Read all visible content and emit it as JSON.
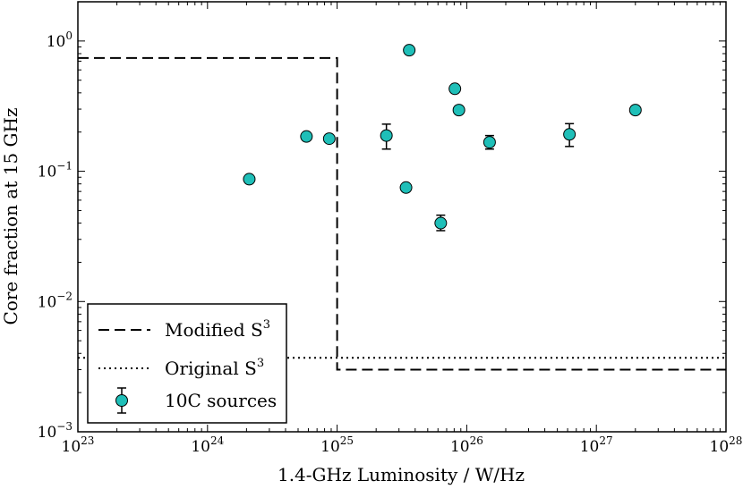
{
  "chart_data": {
    "type": "scatter",
    "title": "",
    "xlabel": "1.4-GHz Luminosity / W/Hz",
    "ylabel": "Core fraction at 15 GHz",
    "xscale": "log",
    "yscale": "log",
    "xlim": [
      1e+23,
      1e+28
    ],
    "ylim": [
      0.001,
      2
    ],
    "x_ticks": [
      {
        "value": 1e+23,
        "base": "10",
        "exp": "23"
      },
      {
        "value": 1e+24,
        "base": "10",
        "exp": "24"
      },
      {
        "value": 1e+25,
        "base": "10",
        "exp": "25"
      },
      {
        "value": 1e+26,
        "base": "10",
        "exp": "26"
      },
      {
        "value": 1e+27,
        "base": "10",
        "exp": "27"
      },
      {
        "value": 1e+28,
        "base": "10",
        "exp": "28"
      }
    ],
    "y_ticks": [
      {
        "value": 0.001,
        "base": "10",
        "exp": "−3"
      },
      {
        "value": 0.01,
        "base": "10",
        "exp": "−2"
      },
      {
        "value": 0.1,
        "base": "10",
        "exp": "−1"
      },
      {
        "value": 1,
        "base": "10",
        "exp": "0"
      }
    ],
    "legend_position": "lower-left",
    "series": [
      {
        "name": "Modified S3",
        "label_text": "Modified S",
        "label_sup": "3",
        "style": "dashed",
        "color": "#000000",
        "points": [
          [
            1e+23,
            0.74
          ],
          [
            1e+25,
            0.74
          ],
          [
            1e+25,
            0.003
          ],
          [
            1e+28,
            0.003
          ]
        ]
      },
      {
        "name": "Original S3",
        "label_text": "Original S",
        "label_sup": "3",
        "style": "dotted",
        "color": "#000000",
        "points": [
          [
            1e+23,
            0.0037
          ],
          [
            1e+28,
            0.0037
          ]
        ]
      },
      {
        "name": "10C sources",
        "label_text": "10C sources",
        "label_sup": "",
        "style": "marker",
        "color": "#1fbfb8",
        "points": [
          {
            "x": 2.1e+24,
            "y": 0.087
          },
          {
            "x": 5.8e+24,
            "y": 0.185
          },
          {
            "x": 8.7e+24,
            "y": 0.178
          },
          {
            "x": 2.4e+25,
            "y": 0.188,
            "yerr": [
              0.148,
              0.23
            ]
          },
          {
            "x": 3.4e+25,
            "y": 0.075
          },
          {
            "x": 3.6e+25,
            "y": 0.85
          },
          {
            "x": 6.3e+25,
            "y": 0.04,
            "yerr": [
              0.035,
              0.046
            ]
          },
          {
            "x": 8.1e+25,
            "y": 0.43
          },
          {
            "x": 8.7e+25,
            "y": 0.295
          },
          {
            "x": 1.5e+26,
            "y": 0.167,
            "yerr": [
              0.148,
              0.188
            ]
          },
          {
            "x": 6.2e+26,
            "y": 0.192,
            "yerr": [
              0.155,
              0.232
            ]
          },
          {
            "x": 2e+27,
            "y": 0.295
          }
        ]
      }
    ]
  }
}
